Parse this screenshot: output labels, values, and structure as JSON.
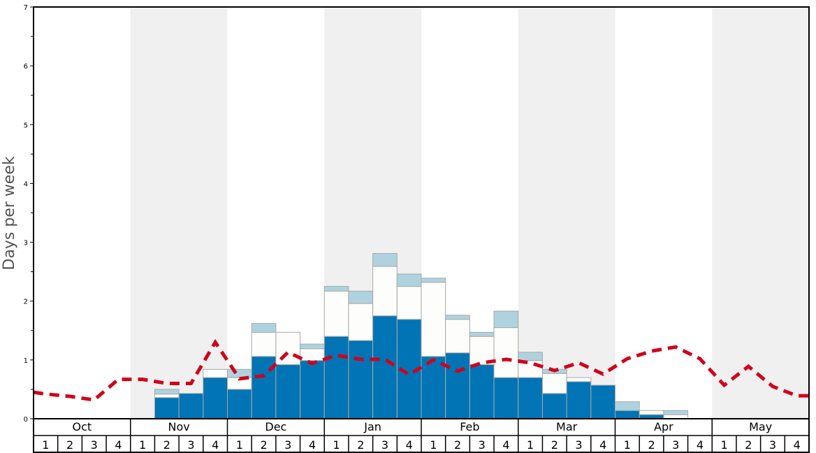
{
  "chart_data": {
    "type": "bar",
    "stacked": true,
    "ylabel": "Days per week",
    "ylim": [
      0,
      7
    ],
    "yticks": [
      "0",
      "1",
      "2",
      "3",
      "4",
      "5",
      "6",
      "7"
    ],
    "months": [
      "Oct",
      "Nov",
      "Dec",
      "Jan",
      "Feb",
      "Mar",
      "Apr",
      "May"
    ],
    "week_labels": [
      "1",
      "2",
      "3",
      "4"
    ],
    "shaded_months": [
      "Nov",
      "Jan",
      "Mar",
      "May"
    ],
    "colors": {
      "base": "#0074b4",
      "middle": "#fdfdfb",
      "top": "#aed3df",
      "line": "#d0021b",
      "band": "#f0f0f0"
    },
    "series": [
      {
        "name": "base",
        "values": [
          0,
          0,
          0,
          0,
          0,
          0.36,
          0.43,
          0.7,
          0.5,
          1.06,
          0.92,
          0.99,
          1.4,
          1.33,
          1.75,
          1.69,
          1.06,
          1.12,
          0.92,
          0.7,
          0.7,
          0.43,
          0.63,
          0.57,
          0.14,
          0.07,
          0,
          0,
          0,
          0,
          0,
          0
        ]
      },
      {
        "name": "middle",
        "values": [
          0,
          0,
          0,
          0,
          0,
          0.06,
          0,
          0.14,
          0.2,
          0.41,
          0.55,
          0.2,
          0.77,
          0.63,
          0.84,
          0.56,
          1.26,
          0.57,
          0.48,
          0.85,
          0.29,
          0.34,
          0.07,
          0,
          0,
          0.07,
          0.07,
          0,
          0,
          0,
          0,
          0
        ]
      },
      {
        "name": "top",
        "values": [
          0,
          0,
          0,
          0,
          0,
          0.08,
          0,
          0,
          0.14,
          0.15,
          0,
          0.08,
          0.08,
          0.21,
          0.22,
          0.21,
          0.07,
          0.07,
          0.07,
          0.28,
          0.14,
          0.07,
          0,
          0,
          0.15,
          0,
          0.07,
          0,
          0,
          0,
          0,
          0
        ]
      }
    ],
    "average_line": {
      "name": "average",
      "style": "dashed",
      "start": 0.45,
      "values": [
        0.42,
        0.38,
        0.32,
        0.67,
        0.67,
        0.6,
        0.6,
        1.3,
        0.68,
        0.73,
        1.13,
        0.94,
        1.08,
        1.01,
        1.01,
        0.75,
        1.0,
        0.81,
        0.95,
        1.01,
        0.95,
        0.82,
        0.95,
        0.76,
        1.02,
        1.15,
        1.22,
        1.02,
        0.57,
        0.89,
        0.55,
        0.39
      ],
      "end": 0.39
    }
  }
}
